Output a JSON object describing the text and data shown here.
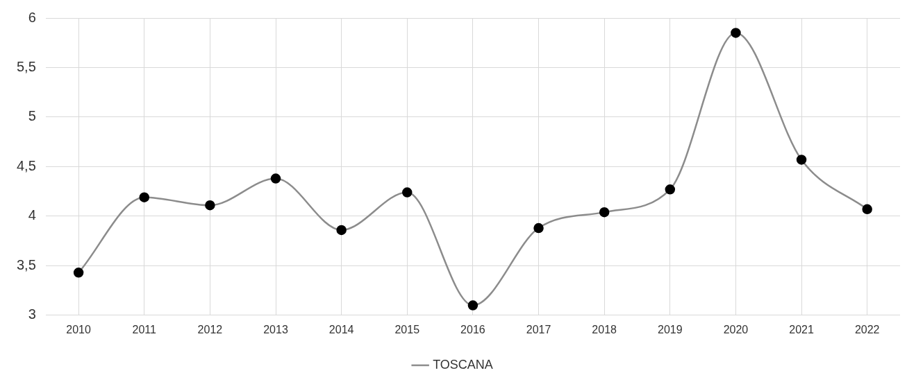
{
  "chart_data": {
    "type": "line",
    "categories": [
      "2010",
      "2011",
      "2012",
      "2013",
      "2014",
      "2015",
      "2016",
      "2017",
      "2018",
      "2019",
      "2020",
      "2021",
      "2022"
    ],
    "series": [
      {
        "name": "TOSCANA",
        "color": "#8c8c8c",
        "values": [
          3.43,
          4.19,
          4.11,
          4.38,
          3.86,
          4.24,
          3.1,
          3.88,
          4.04,
          4.27,
          5.85,
          4.57,
          4.07
        ]
      }
    ],
    "ylim": [
      3,
      6
    ],
    "yticks": [
      3,
      {
        "value": 3.5,
        "label": "3,5"
      },
      4,
      {
        "value": 4.5,
        "label": "4,5"
      },
      5,
      {
        "value": 5.5,
        "label": "5,5"
      },
      6
    ],
    "grid": true,
    "legend": "bottom",
    "marker": "circle",
    "line_style": "solid"
  }
}
